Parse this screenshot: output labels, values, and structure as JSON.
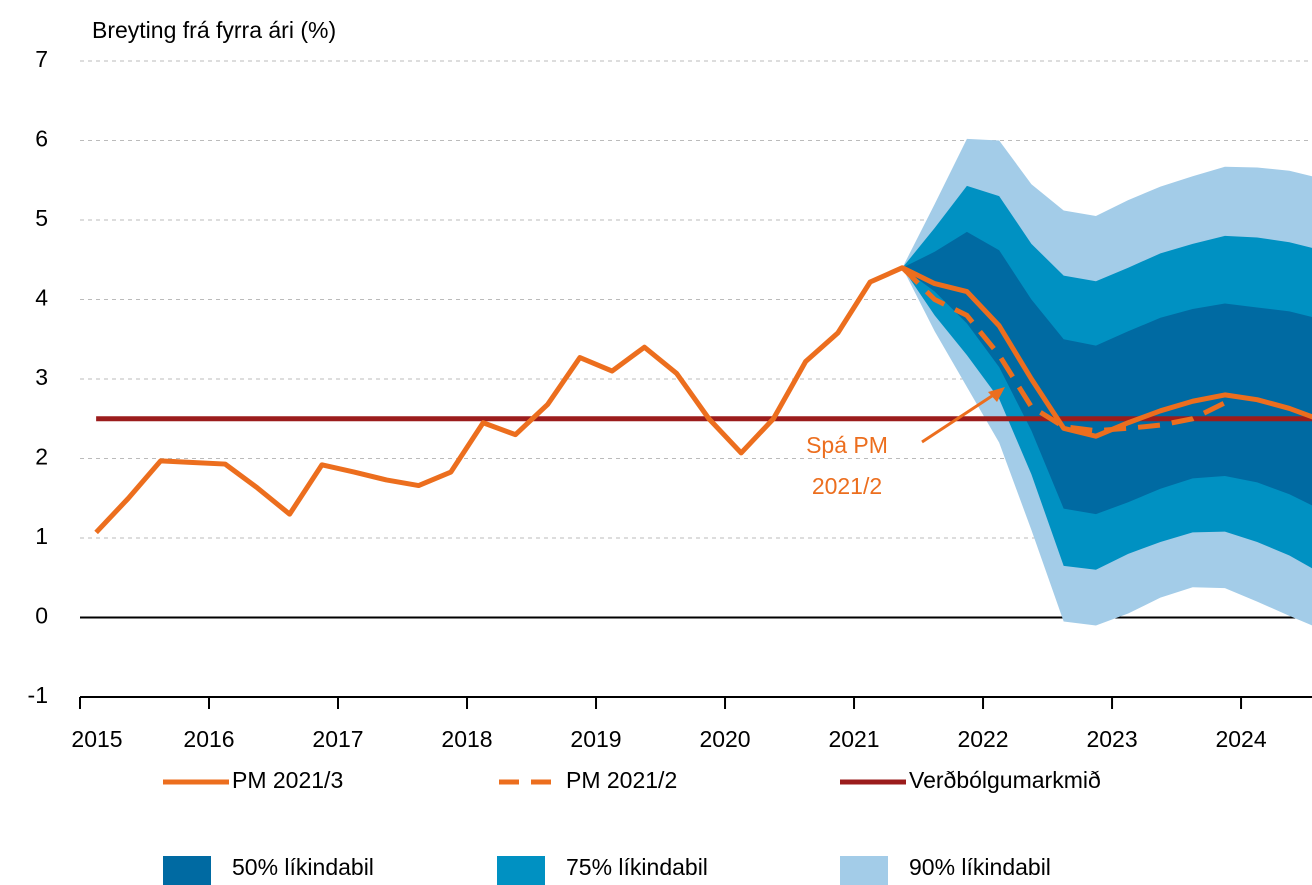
{
  "chart_data": {
    "type": "fan",
    "title": "Breyting frá fyrra ári (%)",
    "xlim": [
      2015,
      2024.55
    ],
    "xticks": [
      2015,
      2016,
      2017,
      2018,
      2019,
      2020,
      2021,
      2022,
      2023,
      2024
    ],
    "ylim": [
      -1,
      7
    ],
    "yticks": [
      -1,
      0,
      1,
      2,
      3,
      4,
      5,
      6,
      7
    ],
    "grid": true,
    "bands": [
      {
        "name": "90% líkindabil",
        "color": "#a3cce8",
        "x": [
          2021.375,
          2021.625,
          2021.875,
          2022.125,
          2022.375,
          2022.625,
          2022.875,
          2023.125,
          2023.375,
          2023.625,
          2023.875,
          2024.125,
          2024.375,
          2024.625
        ],
        "upper": [
          4.4,
          5.2,
          6.02,
          6.0,
          5.45,
          5.12,
          5.05,
          5.25,
          5.42,
          5.55,
          5.67,
          5.66,
          5.62,
          5.52
        ],
        "lower": [
          4.4,
          3.6,
          2.9,
          2.2,
          1.1,
          -0.05,
          -0.1,
          0.05,
          0.25,
          0.38,
          0.37,
          0.2,
          0.02,
          -0.15
        ]
      },
      {
        "name": "75% líkindabil",
        "color": "#0091c2",
        "x": [
          2021.375,
          2021.625,
          2021.875,
          2022.125,
          2022.375,
          2022.625,
          2022.875,
          2023.125,
          2023.375,
          2023.625,
          2023.875,
          2024.125,
          2024.375,
          2024.625
        ],
        "upper": [
          4.4,
          4.9,
          5.43,
          5.3,
          4.7,
          4.3,
          4.23,
          4.4,
          4.58,
          4.7,
          4.8,
          4.78,
          4.72,
          4.62
        ],
        "lower": [
          4.4,
          3.8,
          3.3,
          2.75,
          1.8,
          0.65,
          0.6,
          0.8,
          0.95,
          1.07,
          1.08,
          0.95,
          0.78,
          0.55
        ]
      },
      {
        "name": "50% líkindabil",
        "color": "#006aa2",
        "x": [
          2021.375,
          2021.625,
          2021.875,
          2022.125,
          2022.375,
          2022.625,
          2022.875,
          2023.125,
          2023.375,
          2023.625,
          2023.875,
          2024.125,
          2024.375,
          2024.625
        ],
        "upper": [
          4.4,
          4.6,
          4.85,
          4.62,
          4.0,
          3.5,
          3.42,
          3.6,
          3.77,
          3.88,
          3.95,
          3.9,
          3.85,
          3.75
        ],
        "lower": [
          4.4,
          4.1,
          3.7,
          3.15,
          2.35,
          1.37,
          1.3,
          1.45,
          1.62,
          1.75,
          1.78,
          1.7,
          1.55,
          1.35
        ]
      }
    ],
    "reference_line": {
      "name": "Verðbólgumarkmið",
      "color": "#9b1c1c",
      "value": 2.5
    },
    "series": [
      {
        "name": "PM 2021/3",
        "color": "#ec6e1e",
        "dashed": false,
        "x": [
          2015.125,
          2015.375,
          2015.625,
          2015.875,
          2016.125,
          2016.375,
          2016.625,
          2016.875,
          2017.125,
          2017.375,
          2017.625,
          2017.875,
          2018.125,
          2018.375,
          2018.625,
          2018.875,
          2019.125,
          2019.375,
          2019.625,
          2019.875,
          2020.125,
          2020.375,
          2020.625,
          2020.875,
          2021.125,
          2021.375,
          2021.625,
          2021.875,
          2022.125,
          2022.375,
          2022.625,
          2022.875,
          2023.125,
          2023.375,
          2023.625,
          2023.875,
          2024.125,
          2024.375,
          2024.625
        ],
        "values": [
          1.07,
          1.5,
          1.97,
          1.95,
          1.93,
          1.63,
          1.3,
          1.92,
          1.83,
          1.73,
          1.66,
          1.83,
          2.45,
          2.3,
          2.68,
          3.27,
          3.1,
          3.4,
          3.07,
          2.5,
          2.07,
          2.5,
          3.22,
          3.58,
          4.22,
          4.4,
          4.2,
          4.1,
          3.67,
          3.0,
          2.38,
          2.28,
          2.45,
          2.6,
          2.72,
          2.8,
          2.74,
          2.63,
          2.48
        ]
      },
      {
        "name": "PM 2021/2",
        "color": "#ec6e1e",
        "dashed": true,
        "x": [
          2021.375,
          2021.625,
          2021.875,
          2022.125,
          2022.375,
          2022.625,
          2022.875,
          2023.125,
          2023.375,
          2023.625,
          2023.875
        ],
        "values": [
          4.4,
          4.0,
          3.8,
          3.3,
          2.65,
          2.4,
          2.35,
          2.38,
          2.42,
          2.5,
          2.7
        ]
      }
    ],
    "annotation_lines": [
      "Spá PM",
      "2021/2"
    ]
  }
}
